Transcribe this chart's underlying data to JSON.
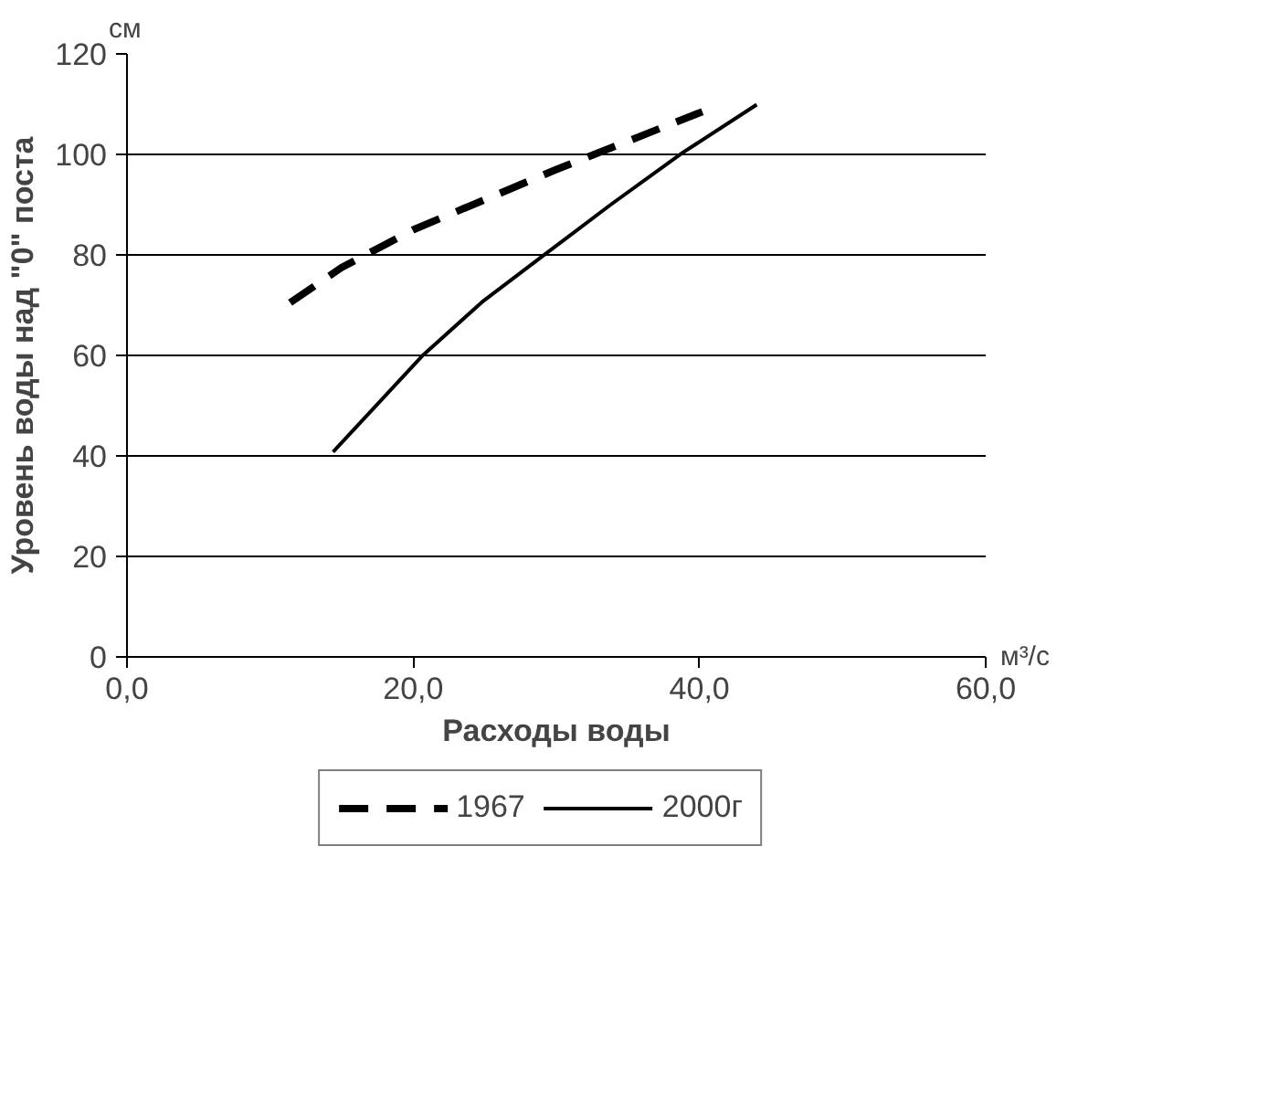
{
  "chart_data": {
    "type": "line",
    "xlabel": "Расходы воды",
    "ylabel": "Уровень воды над \"0\" поста",
    "annotations": [
      "см",
      "м³/с"
    ],
    "xlim": [
      0,
      60
    ],
    "ylim": [
      0,
      120
    ],
    "xticks": [
      {
        "value": 0,
        "label": "0,0"
      },
      {
        "value": 20,
        "label": "20,0"
      },
      {
        "value": 40,
        "label": "40,0"
      },
      {
        "value": 60,
        "label": "60,0"
      }
    ],
    "yticks": [
      0,
      20,
      40,
      60,
      80,
      100,
      120
    ],
    "grid": "y",
    "legend": "bottom",
    "series": [
      {
        "name": "1967",
        "color": "#000000",
        "line_style": "dashed",
        "x": [
          11.4,
          15,
          20,
          30,
          40.2
        ],
        "values": [
          70.5,
          77.5,
          85,
          97,
          108.5
        ]
      },
      {
        "name": "2000г",
        "color": "#000000",
        "line_style": "solid",
        "x": [
          14.4,
          20.7,
          24.8,
          29.2,
          33.8,
          38.8,
          44
        ],
        "values": [
          40.8,
          60.1,
          70.6,
          80.1,
          90,
          100.3,
          109.9
        ]
      }
    ]
  }
}
